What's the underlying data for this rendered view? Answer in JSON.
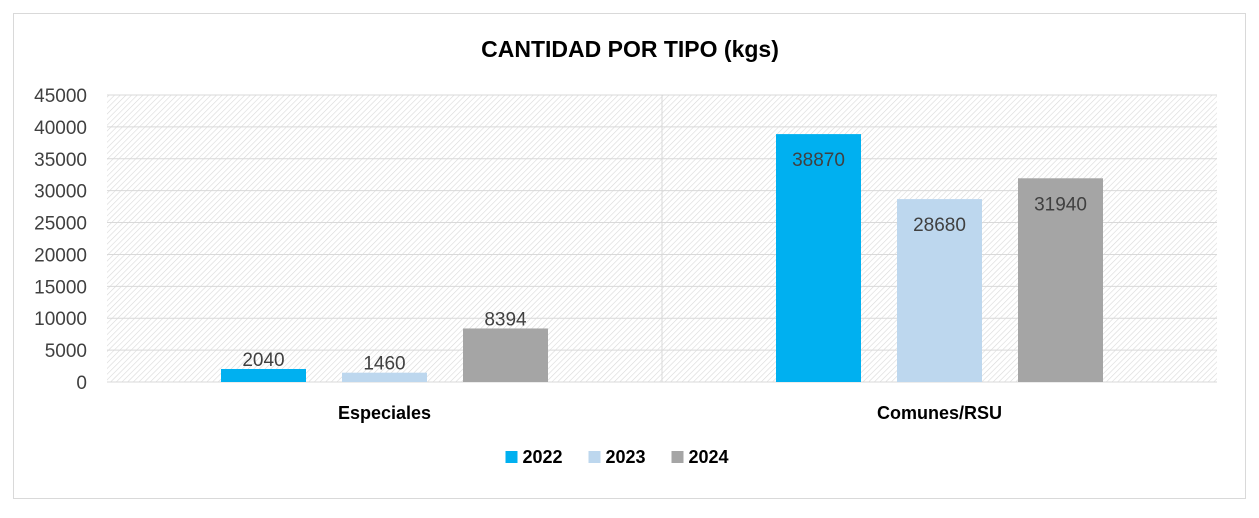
{
  "chart_data": {
    "type": "bar",
    "title": "CANTIDAD POR TIPO (kgs)",
    "categories": [
      "Especiales",
      "Comunes/RSU"
    ],
    "series": [
      {
        "name": "2022",
        "values": [
          2040,
          38870
        ],
        "labels": [
          "2040",
          "38870"
        ],
        "color": "#00B0F0"
      },
      {
        "name": "2023",
        "values": [
          1460,
          28680
        ],
        "labels": [
          "1460",
          "28680"
        ],
        "color": "#BDD7EE"
      },
      {
        "name": "2024",
        "values": [
          8394,
          31940
        ],
        "labels": [
          "8394",
          "31940"
        ],
        "color": "#A5A5A5"
      }
    ],
    "ylim": [
      0,
      45000
    ],
    "yticks": [
      "0",
      "5000",
      "10000",
      "15000",
      "20000",
      "25000",
      "30000",
      "35000",
      "40000",
      "45000"
    ],
    "grid": true,
    "legend": "bottom"
  }
}
